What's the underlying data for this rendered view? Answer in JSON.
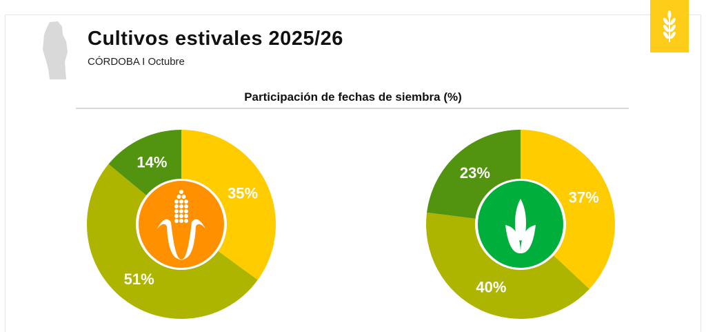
{
  "header": {
    "title": "Cultivos estivales 2025/26",
    "subtitle": "CÓRDOBA I Octubre",
    "badge_icon": "wheat-icon",
    "map_icon": "cordoba-map-icon"
  },
  "colors": {
    "yellow": "#ffcc00",
    "olive": "#adb500",
    "green": "#52930f",
    "orange": "#ff9000",
    "soy_green": "#00ae3b",
    "badge": "#fecd1a"
  },
  "chart_data": [
    {
      "type": "pie",
      "title": "Participación de fechas de siembra (%)",
      "crop_icon": "corn-icon",
      "slices": [
        {
          "value": 35,
          "label": "35%",
          "color": "#ffcc00"
        },
        {
          "value": 51,
          "label": "51%",
          "color": "#adb500"
        },
        {
          "value": 14,
          "label": "14%",
          "color": "#52930f"
        }
      ]
    },
    {
      "type": "pie",
      "title": "Participación de fechas de siembra (%)",
      "crop_icon": "soybean-sprout-icon",
      "slices": [
        {
          "value": 37,
          "label": "37%",
          "color": "#ffcc00"
        },
        {
          "value": 40,
          "label": "40%",
          "color": "#adb500"
        },
        {
          "value": 23,
          "label": "23%",
          "color": "#52930f"
        }
      ]
    }
  ]
}
